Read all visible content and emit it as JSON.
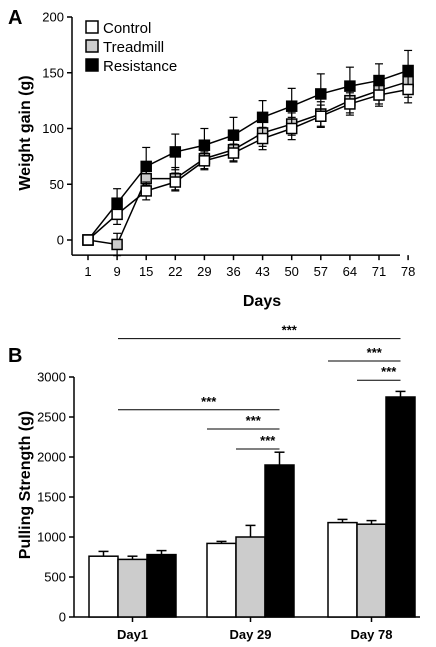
{
  "colors": {
    "control": "#ffffff",
    "treadmill": "#cccccc",
    "resistance": "#000000",
    "stroke": "#000000"
  },
  "chart_data": [
    {
      "panel": "A",
      "type": "line",
      "title": "",
      "xlabel": "Days",
      "ylabel": "Weight gain (g)",
      "categories": [
        "1",
        "9",
        "15",
        "22",
        "29",
        "36",
        "43",
        "50",
        "57",
        "64",
        "71",
        "78"
      ],
      "ylim": [
        -10,
        200
      ],
      "yticks": [
        0,
        50,
        100,
        150,
        200
      ],
      "grid": false,
      "legend": "top-left",
      "series": [
        {
          "name": "Control",
          "key": "control",
          "values": [
            0,
            23,
            44,
            52,
            71,
            78,
            91,
            100,
            111,
            122,
            130,
            135
          ],
          "errors": [
            0,
            9,
            8,
            8,
            8,
            8,
            10,
            10,
            10,
            10,
            10,
            12
          ]
        },
        {
          "name": "Treadmill",
          "key": "treadmill",
          "values": [
            0,
            -4,
            55,
            55,
            73,
            81,
            96,
            104,
            113,
            125,
            134,
            142
          ],
          "errors": [
            0,
            10,
            14,
            10,
            9,
            10,
            12,
            10,
            11,
            11,
            12,
            14
          ]
        },
        {
          "name": "Resistance",
          "key": "resistance",
          "values": [
            0,
            33,
            66,
            79,
            85,
            94,
            110,
            120,
            131,
            138,
            143,
            152
          ],
          "errors": [
            0,
            13,
            17,
            16,
            15,
            16,
            15,
            16,
            18,
            17,
            15,
            18
          ]
        }
      ]
    },
    {
      "panel": "B",
      "type": "bar",
      "title": "",
      "xlabel": "",
      "ylabel": "Pulling Strength (g)",
      "categories": [
        "Day1",
        "Day 29",
        "Day 78"
      ],
      "ylim": [
        0,
        3000
      ],
      "yticks": [
        0,
        500,
        1000,
        1500,
        2000,
        2500,
        3000
      ],
      "grid": false,
      "series": [
        {
          "name": "Control",
          "key": "control",
          "values": [
            760,
            920,
            1180
          ],
          "errors": [
            60,
            25,
            40
          ]
        },
        {
          "name": "Treadmill",
          "key": "treadmill",
          "values": [
            720,
            1000,
            1160
          ],
          "errors": [
            40,
            145,
            45
          ]
        },
        {
          "name": "Resistance",
          "key": "resistance",
          "values": [
            780,
            1900,
            2750
          ],
          "errors": [
            50,
            160,
            70
          ]
        }
      ],
      "significance": [
        {
          "label": "***",
          "from_category": 0,
          "from_series": 1,
          "to_category": 2,
          "to_series": 2,
          "y": 3480
        },
        {
          "label": "***",
          "from_category": 0,
          "from_series": 1,
          "to_category": 1,
          "to_series": 2,
          "y": 2590
        },
        {
          "label": "***",
          "from_category": 1,
          "from_series": 0,
          "to_category": 1,
          "to_series": 2,
          "y": 2350
        },
        {
          "label": "***",
          "from_category": 1,
          "from_series": 1,
          "to_category": 1,
          "to_series": 2,
          "y": 2100
        },
        {
          "label": "***",
          "from_category": 2,
          "from_series": 0,
          "to_category": 2,
          "to_series": 2,
          "y": 3200
        },
        {
          "label": "***",
          "from_category": 2,
          "from_series": 1,
          "to_category": 2,
          "to_series": 2,
          "y": 2960
        }
      ]
    }
  ]
}
